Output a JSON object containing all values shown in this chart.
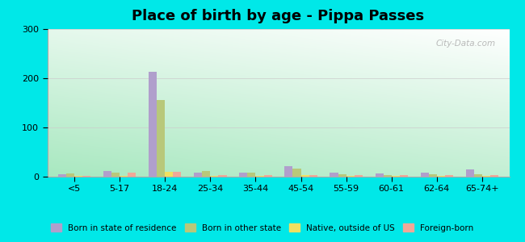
{
  "title": "Place of birth by age - Pippa Passes",
  "categories": [
    "<5",
    "5-17",
    "18-24",
    "25-34",
    "35-44",
    "45-54",
    "55-59",
    "60-61",
    "62-64",
    "65-74+"
  ],
  "series": {
    "Born in state of residence": [
      5,
      12,
      213,
      8,
      9,
      22,
      9,
      6,
      9,
      15
    ],
    "Born in other state": [
      7,
      8,
      155,
      11,
      9,
      17,
      5,
      3,
      5,
      5
    ],
    "Native, outside of US": [
      2,
      2,
      10,
      2,
      2,
      3,
      2,
      2,
      2,
      2
    ],
    "Foreign-born": [
      2,
      8,
      10,
      3,
      3,
      4,
      3,
      3,
      3,
      3
    ]
  },
  "colors": {
    "Born in state of residence": "#b09fcc",
    "Born in other state": "#b8c87a",
    "Native, outside of US": "#f0e060",
    "Foreign-born": "#f0a898"
  },
  "ylim": [
    0,
    300
  ],
  "yticks": [
    0,
    100,
    200,
    300
  ],
  "outer_background": "#00e8e8",
  "title_fontsize": 13,
  "watermark": "City-Data.com",
  "gradient_bottom": "#a8e8c0",
  "gradient_top": "#f0fff8"
}
